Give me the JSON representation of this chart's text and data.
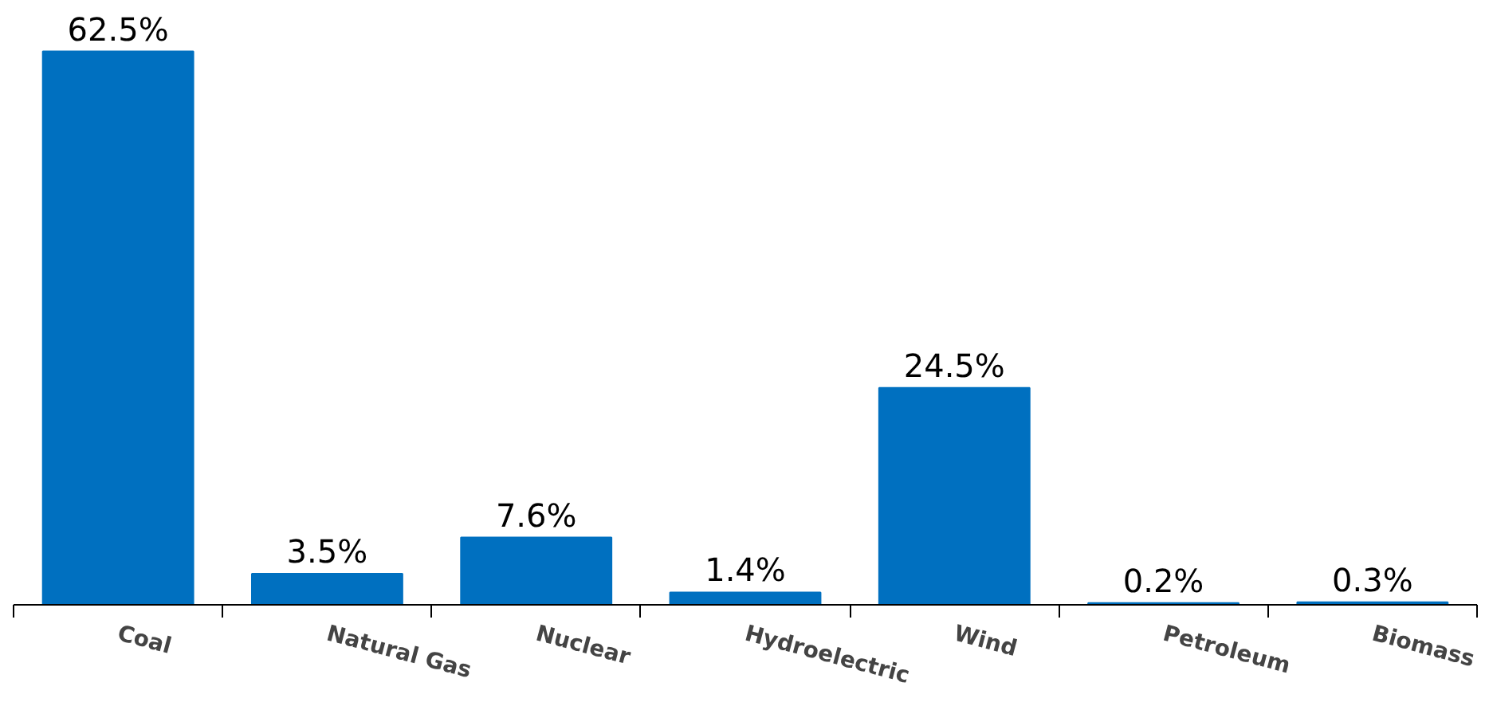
{
  "chart_data": {
    "type": "bar",
    "categories": [
      "Coal",
      "Natural Gas",
      "Nuclear",
      "Hydroelectric",
      "Wind",
      "Petroleum",
      "Biomass"
    ],
    "values": [
      62.5,
      3.5,
      7.6,
      1.4,
      24.5,
      0.2,
      0.3
    ],
    "value_labels": [
      "62.5%",
      "3.5%",
      "7.6%",
      "1.4%",
      "24.5%",
      "0.2%",
      "0.3%"
    ],
    "color": "#0070c0",
    "grid": false
  }
}
